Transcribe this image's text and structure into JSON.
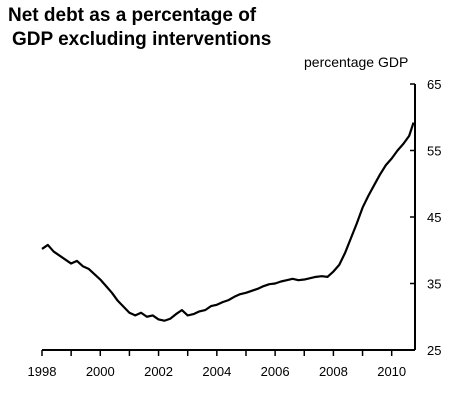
{
  "chart_data": {
    "type": "line",
    "title_line1": "Net debt as a percentage of",
    "title_line2": " GDP excluding interventions",
    "ylabel": "percentage GDP",
    "xlim": [
      1998,
      2010.8
    ],
    "ylim": [
      25,
      65
    ],
    "y_ticks": [
      25,
      35,
      45,
      55,
      65
    ],
    "x_ticks": [
      1998,
      2000,
      2002,
      2004,
      2006,
      2008,
      2010
    ],
    "y_axis_position": "right",
    "grid": false,
    "series": [
      {
        "color": "#000000",
        "x": [
          1998.0,
          1998.2,
          1998.4,
          1998.6,
          1998.8,
          1999.0,
          1999.2,
          1999.4,
          1999.6,
          1999.8,
          2000.0,
          2000.2,
          2000.4,
          2000.6,
          2000.8,
          2001.0,
          2001.2,
          2001.4,
          2001.6,
          2001.8,
          2002.0,
          2002.2,
          2002.4,
          2002.6,
          2002.8,
          2003.0,
          2003.2,
          2003.4,
          2003.6,
          2003.8,
          2004.0,
          2004.2,
          2004.4,
          2004.6,
          2004.8,
          2005.0,
          2005.2,
          2005.4,
          2005.6,
          2005.8,
          2006.0,
          2006.2,
          2006.4,
          2006.6,
          2006.8,
          2007.0,
          2007.2,
          2007.4,
          2007.6,
          2007.8,
          2008.0,
          2008.2,
          2008.4,
          2008.6,
          2008.8,
          2009.0,
          2009.2,
          2009.4,
          2009.6,
          2009.8,
          2010.0,
          2010.2,
          2010.4,
          2010.6,
          2010.75
        ],
        "y": [
          40.2,
          40.8,
          39.8,
          39.2,
          38.6,
          38.0,
          38.4,
          37.6,
          37.2,
          36.4,
          35.6,
          34.6,
          33.6,
          32.4,
          31.5,
          30.6,
          30.2,
          30.6,
          30.0,
          30.2,
          29.6,
          29.4,
          29.7,
          30.4,
          31.0,
          30.2,
          30.4,
          30.8,
          31.0,
          31.6,
          31.8,
          32.2,
          32.5,
          33.0,
          33.4,
          33.6,
          33.9,
          34.2,
          34.6,
          34.9,
          35.0,
          35.3,
          35.5,
          35.7,
          35.5,
          35.6,
          35.8,
          36.0,
          36.1,
          36.0,
          36.8,
          37.8,
          39.6,
          41.8,
          44.0,
          46.4,
          48.2,
          49.8,
          51.4,
          52.8,
          53.8,
          55.0,
          56.0,
          57.2,
          59.2
        ]
      }
    ]
  }
}
